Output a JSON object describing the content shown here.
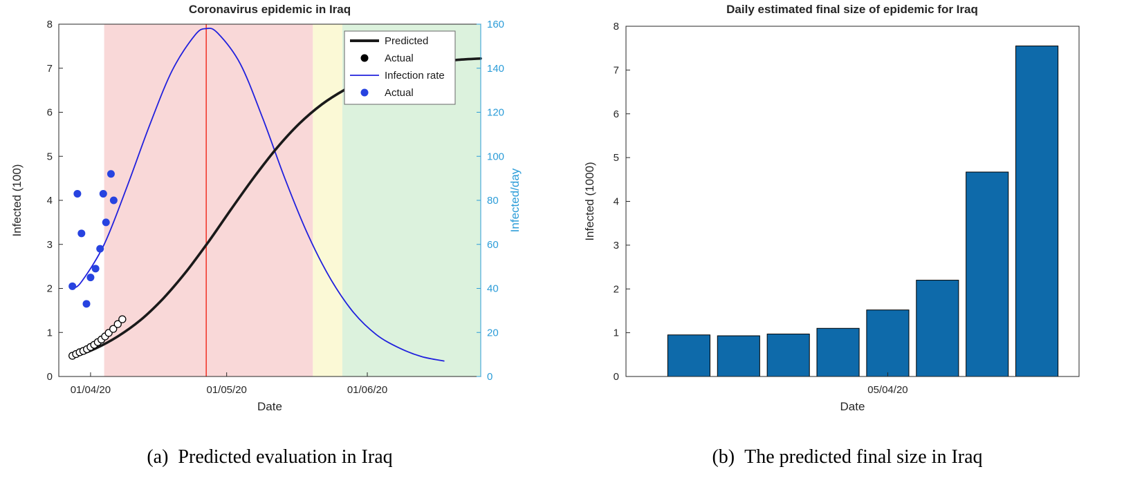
{
  "page": {
    "background": "#ffffff"
  },
  "captions": {
    "left_prefix": "(a)",
    "left_text": "Predicted evaluation in Iraq",
    "right_prefix": "(b)",
    "right_text": "The predicted final size in Iraq"
  },
  "chart_data": [
    {
      "type": "line",
      "title": "Coronavirus epidemic in Iraq",
      "xlabel": "Date",
      "ylabel_left": "Infected (100)",
      "ylabel_right": "Infected/day",
      "xlim": [
        0,
        93
      ],
      "ylim_left": [
        0,
        8
      ],
      "ylim_right": [
        0,
        160
      ],
      "yticks_left": [
        0,
        1,
        2,
        3,
        4,
        5,
        6,
        7,
        8
      ],
      "yticks_right": [
        0,
        20,
        40,
        60,
        80,
        100,
        120,
        140,
        160
      ],
      "xticks": [
        {
          "day": 7,
          "label": "01/04/20"
        },
        {
          "day": 37,
          "label": "01/05/20"
        },
        {
          "day": 68,
          "label": "01/06/20"
        }
      ],
      "axis_color": "#262626",
      "right_axis_color": "#2b9cd8",
      "grid": false,
      "legend_position": "top-right",
      "regions": [
        {
          "from": 10,
          "to": 56,
          "color": "#f9d8d8"
        },
        {
          "from": 56,
          "to": 62.5,
          "color": "#fbf9d6"
        },
        {
          "from": 62.5,
          "to": 93,
          "color": "#dcf2dd"
        }
      ],
      "vline": {
        "day": 32.5,
        "color": "#f23a2e"
      },
      "series": {
        "predicted": {
          "name": "Predicted",
          "color": "#1a1a1a",
          "axis": "left",
          "points": [
            [
              3,
              0.43
            ],
            [
              8,
              0.63
            ],
            [
              13,
              0.91
            ],
            [
              18,
              1.28
            ],
            [
              23,
              1.77
            ],
            [
              28,
              2.37
            ],
            [
              33,
              3.06
            ],
            [
              38,
              3.8
            ],
            [
              43,
              4.52
            ],
            [
              48,
              5.18
            ],
            [
              53,
              5.74
            ],
            [
              58,
              6.18
            ],
            [
              63,
              6.51
            ],
            [
              68,
              6.76
            ],
            [
              73,
              6.93
            ],
            [
              78,
              7.05
            ],
            [
              83,
              7.13
            ],
            [
              88,
              7.19
            ],
            [
              93,
              7.22
            ]
          ]
        },
        "actual_cumulative": {
          "name": "Actual",
          "color": "#000000",
          "fill": "#ffffff",
          "axis": "left",
          "points": [
            [
              3,
              0.47
            ],
            [
              3.8,
              0.51
            ],
            [
              4.6,
              0.55
            ],
            [
              5.4,
              0.58
            ],
            [
              6.2,
              0.62
            ],
            [
              7,
              0.67
            ],
            [
              7.8,
              0.72
            ],
            [
              8.6,
              0.78
            ],
            [
              9.4,
              0.84
            ],
            [
              10.2,
              0.91
            ],
            [
              11,
              0.99
            ],
            [
              12,
              1.08
            ],
            [
              13,
              1.19
            ],
            [
              14,
              1.3
            ]
          ]
        },
        "infection_rate": {
          "name": "Infection rate",
          "color": "#2020dd",
          "axis": "right",
          "points": [
            [
              3,
              40
            ],
            [
              5,
              43
            ],
            [
              10,
              60
            ],
            [
              15,
              86
            ],
            [
              20,
              114
            ],
            [
              25,
              139
            ],
            [
              30,
              155
            ],
            [
              32.5,
              158
            ],
            [
              35,
              156
            ],
            [
              40,
              142
            ],
            [
              45,
              117
            ],
            [
              50,
              89
            ],
            [
              55,
              64
            ],
            [
              60,
              44
            ],
            [
              65,
              29
            ],
            [
              70,
              19
            ],
            [
              75,
              13
            ],
            [
              80,
              9
            ],
            [
              85,
              7
            ]
          ]
        },
        "actual_daily": {
          "name": "Actual",
          "color": "#2743e0",
          "axis": "right",
          "points": [
            [
              3,
              41
            ],
            [
              4.1,
              83
            ],
            [
              5,
              65
            ],
            [
              6.1,
              33
            ],
            [
              7,
              45
            ],
            [
              8.1,
              49
            ],
            [
              9.1,
              58
            ],
            [
              9.8,
              83
            ],
            [
              10.4,
              70
            ],
            [
              11.5,
              92
            ],
            [
              12.1,
              80
            ]
          ]
        }
      },
      "legend": [
        {
          "label": "Predicted",
          "type": "thick-line",
          "color": "#1a1a1a"
        },
        {
          "label": "Actual",
          "type": "dot",
          "color": "#000000"
        },
        {
          "label": "Infection rate",
          "type": "line",
          "color": "#2020dd"
        },
        {
          "label": "Actual",
          "type": "dot",
          "color": "#2743e0"
        }
      ]
    },
    {
      "type": "bar",
      "title": "Daily estimated final size of epidemic for Iraq",
      "xlabel": "Date",
      "ylabel": "Infected (1000)",
      "ylim": [
        0,
        8
      ],
      "yticks": [
        0,
        1,
        2,
        3,
        4,
        5,
        6,
        7,
        8
      ],
      "categories": [
        "",
        "",
        "",
        "",
        "05/04/20",
        "",
        "",
        ""
      ],
      "values": [
        0.95,
        0.93,
        0.97,
        1.1,
        1.52,
        2.2,
        4.67,
        7.55
      ],
      "bar_color": "#0e6aaa",
      "bar_edge": "#000000",
      "axis_color": "#262626",
      "grid": false
    }
  ]
}
